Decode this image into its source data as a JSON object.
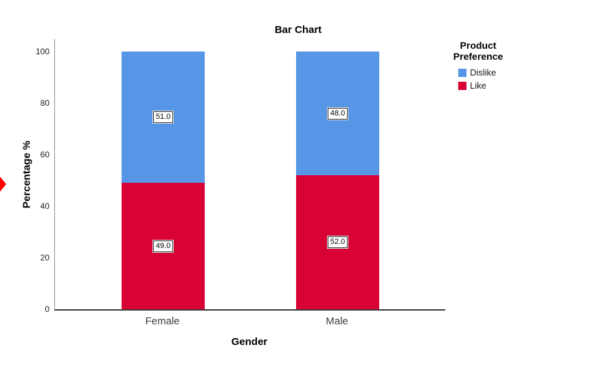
{
  "chart_data": {
    "type": "bar",
    "variant": "stacked-percent",
    "title": "Bar Chart",
    "xlabel": "Gender",
    "ylabel": "Percentage %",
    "categories": [
      "Female",
      "Male"
    ],
    "series": [
      {
        "name": "Like",
        "color": "#D80235",
        "values": [
          49.0,
          52.0
        ],
        "labels": [
          "49.0",
          "52.0"
        ]
      },
      {
        "name": "Dislike",
        "color": "#5795E7",
        "values": [
          51.0,
          48.0
        ],
        "labels": [
          "51.0",
          "48.0"
        ]
      }
    ],
    "yticks": [
      0,
      20,
      40,
      60,
      80,
      100
    ],
    "ylim": [
      0,
      100
    ],
    "grid": false,
    "legend_position": "right",
    "legend_title": "Product Preference"
  },
  "legend": {
    "title_lines": [
      "Product",
      "Preference"
    ],
    "items": [
      {
        "label": "Dislike",
        "color": "#5795E7"
      },
      {
        "label": "Like",
        "color": "#D80235"
      }
    ]
  },
  "annotations": {
    "selection_arrow_color": "#FF0000"
  },
  "axis_colors": {
    "y_axis": "#8C8C8C",
    "x_axis": "#3C3C3C"
  }
}
